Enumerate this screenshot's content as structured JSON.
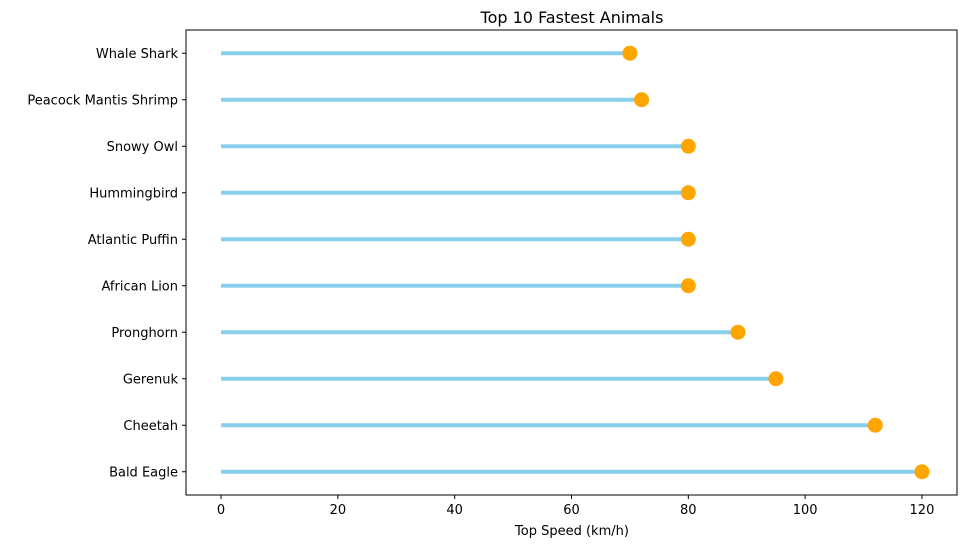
{
  "chart_data": {
    "type": "lollipop",
    "orientation": "horizontal",
    "title": "Top 10 Fastest Animals",
    "xlabel": "Top Speed (km/h)",
    "ylabel": "",
    "categories": [
      "Bald Eagle",
      "Cheetah",
      "Gerenuk",
      "Pronghorn",
      "African Lion",
      "Atlantic Puffin",
      "Hummingbird",
      "Snowy Owl",
      "Peacock Mantis Shrimp",
      "Whale Shark"
    ],
    "values": [
      120,
      112,
      95,
      88.5,
      80,
      80,
      80,
      80,
      72,
      70
    ],
    "xlim": [
      -6,
      126
    ],
    "xticks": [
      0,
      20,
      40,
      60,
      80,
      100,
      120
    ],
    "grid": false,
    "colors": {
      "stem": "#87CEEB",
      "marker": "#FFA500"
    }
  }
}
